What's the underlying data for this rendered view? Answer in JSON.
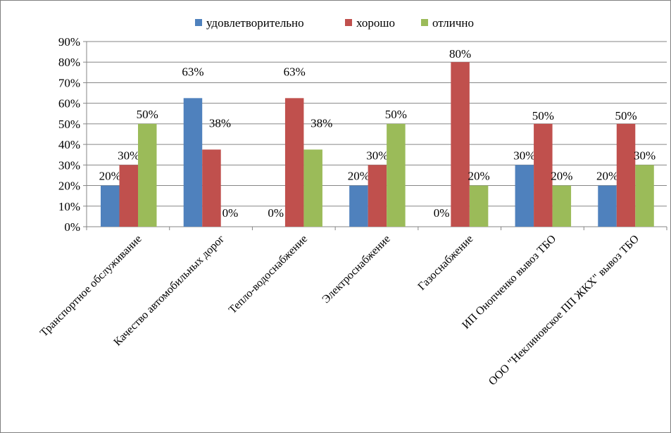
{
  "chart_data": {
    "type": "bar",
    "categories": [
      "Транспортное обслуживание",
      "Качество автомобильных дорог",
      "Тепло-водоснабжение",
      "Электроснабжение",
      "Газоснабжение",
      "ИП Онопченко вывоз ТБО",
      "ООО \"Неклиновское ПП ЖКХ\" вывоз ТБО"
    ],
    "series": [
      {
        "name": "удовлетворительно",
        "color": "#4F81BD",
        "values": [
          20,
          62.5,
          0,
          20,
          0,
          30,
          20
        ],
        "labels": [
          "20%",
          "63%",
          "0%",
          "20%",
          "0%",
          "30%",
          "20%"
        ]
      },
      {
        "name": "хорошо",
        "color": "#C0504D",
        "values": [
          30,
          37.5,
          62.5,
          30,
          80,
          50,
          50
        ],
        "labels": [
          "30%",
          "38%",
          "63%",
          "30%",
          "80%",
          "50%",
          "50%"
        ]
      },
      {
        "name": "отлично",
        "color": "#9BBB59",
        "values": [
          50,
          0,
          37.5,
          50,
          20,
          20,
          30
        ],
        "labels": [
          "50%",
          "0%",
          "38%",
          "50%",
          "20%",
          "20%",
          "30%"
        ]
      }
    ],
    "yticks": [
      "0%",
      "10%",
      "20%",
      "30%",
      "40%",
      "50%",
      "60%",
      "70%",
      "80%",
      "90%"
    ],
    "ylim": [
      0,
      90
    ],
    "grid": true,
    "legend": "top"
  }
}
